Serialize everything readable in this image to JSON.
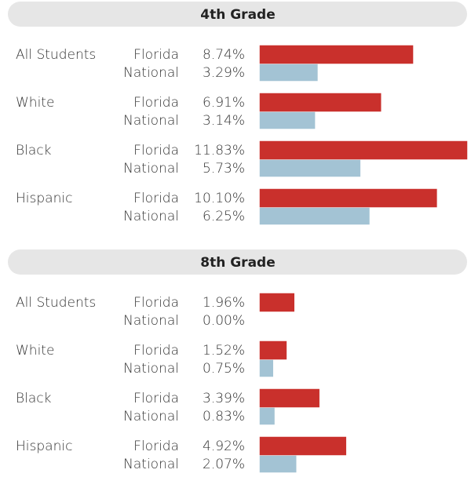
{
  "chart_data": [
    {
      "type": "bar",
      "title": "4th Grade",
      "categories": [
        "All Students",
        "White",
        "Black",
        "Hispanic"
      ],
      "series": [
        {
          "name": "Florida",
          "color": "#c9302c",
          "values": [
            8.74,
            6.91,
            11.83,
            10.1
          ],
          "value_labels": [
            "8.74%",
            "6.91%",
            "11.83%",
            "10.10%"
          ]
        },
        {
          "name": "National",
          "color": "#a3c3d4",
          "values": [
            3.29,
            3.14,
            5.73,
            6.25
          ],
          "value_labels": [
            "3.29%",
            "3.14%",
            "5.73%",
            "6.25%"
          ]
        }
      ]
    },
    {
      "type": "bar",
      "title": "8th Grade",
      "categories": [
        "All Students",
        "White",
        "Black",
        "Hispanic"
      ],
      "series": [
        {
          "name": "Florida",
          "color": "#c9302c",
          "values": [
            1.96,
            1.52,
            3.39,
            4.92
          ],
          "value_labels": [
            "1.96%",
            "1.52%",
            "3.39%",
            "4.92%"
          ]
        },
        {
          "name": "National",
          "color": "#a3c3d4",
          "values": [
            0.0,
            0.75,
            0.83,
            2.07
          ],
          "value_labels": [
            "0.00%",
            "0.75%",
            "0.83%",
            "2.07%"
          ]
        }
      ]
    }
  ]
}
